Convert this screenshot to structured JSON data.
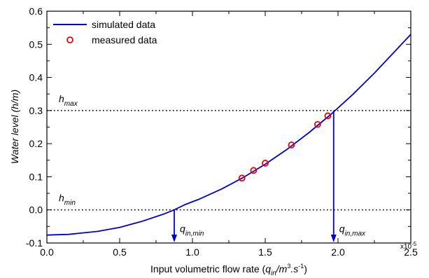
{
  "chart_data": {
    "type": "line",
    "title": "",
    "xlabel": {
      "prefix": "Input volumetric flow rate (",
      "q": "q",
      "q_sub": "in",
      "mid": "/m",
      "sup1": "3",
      "dot": ".s",
      "sup2": "-1",
      "suffix": ")"
    },
    "ylabel": {
      "prefix": "Water level (",
      "h": "h",
      "slash": "/",
      "m": "m",
      "suffix": ")"
    },
    "x_multiplier": "x10",
    "x_multiplier_exp": "-5",
    "xlim": [
      0.0,
      2.5
    ],
    "ylim": [
      -0.1,
      0.6
    ],
    "xticks": [
      0.0,
      0.5,
      1.0,
      1.5,
      2.0,
      2.5
    ],
    "xtick_labels": [
      "0.0",
      "0.5",
      "1.0",
      "1.5",
      "2.0",
      "2.5"
    ],
    "yticks": [
      -0.1,
      0.0,
      0.1,
      0.2,
      0.3,
      0.4,
      0.5,
      0.6
    ],
    "ytick_labels": [
      "-0.1",
      "0.0",
      "0.1",
      "0.2",
      "0.3",
      "0.4",
      "0.5",
      "0.6"
    ],
    "grid": false,
    "legend_position": "top-left",
    "series": [
      {
        "name": "simulated data",
        "style": "line",
        "color": "#0000cc",
        "x": [
          0.0,
          0.15,
          0.35,
          0.5,
          0.65,
          0.8,
          0.875,
          0.95,
          1.05,
          1.2,
          1.35,
          1.5,
          1.65,
          1.8,
          1.95,
          2.1,
          2.25,
          2.4,
          2.5
        ],
        "y": [
          -0.076,
          -0.074,
          -0.065,
          -0.053,
          -0.035,
          -0.013,
          0.0,
          0.016,
          0.033,
          0.063,
          0.098,
          0.138,
          0.183,
          0.233,
          0.288,
          0.348,
          0.413,
          0.483,
          0.53
        ]
      },
      {
        "name": "measured data",
        "style": "marker",
        "color": "#ee0000",
        "x": [
          1.34,
          1.42,
          1.5,
          1.68,
          1.86,
          1.93
        ],
        "y": [
          0.096,
          0.119,
          0.141,
          0.196,
          0.258,
          0.284
        ]
      }
    ],
    "reference_lines": [
      {
        "label": "h",
        "sub": "max",
        "y": 0.3
      },
      {
        "label": "h",
        "sub": "min",
        "y": 0.0
      }
    ],
    "annotations": [
      {
        "label": "q",
        "sub": "in,min",
        "x": 0.875,
        "from_y": 0.0
      },
      {
        "label": "q",
        "sub": "in,max",
        "x": 1.97,
        "from_y": 0.3
      }
    ]
  }
}
